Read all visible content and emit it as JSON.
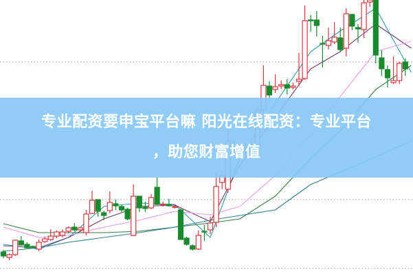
{
  "banner": {
    "line1": "专业配资要申宝平台嘛 阳光在线配资：专业平台",
    "line2": "，助您财富增值"
  },
  "chart_data": {
    "type": "candlestick",
    "ylim": [
      0,
      40
    ],
    "grid": "dotted horizontal",
    "gridlines": [
      1,
      11,
      31
    ],
    "colors": {
      "up": "#d9363e",
      "down": "#1a8a2e",
      "grid": "#999999"
    },
    "candles_ohlc_order": "open,close,high,low",
    "candles": [
      [
        3.4,
        2.8,
        3.7,
        2.5
      ],
      [
        2.6,
        3.0,
        3.2,
        2.2
      ],
      [
        3.0,
        5.1,
        5.2,
        2.8
      ],
      [
        5.0,
        4.4,
        5.7,
        4.3
      ],
      [
        4.5,
        4.0,
        4.8,
        3.9
      ],
      [
        4.2,
        4.1,
        4.3,
        4.0
      ],
      [
        3.8,
        4.8,
        5.2,
        3.5
      ],
      [
        4.9,
        5.3,
        5.6,
        4.7
      ],
      [
        5.2,
        5.7,
        6.7,
        5.0
      ],
      [
        5.7,
        6.3,
        6.5,
        5.4
      ],
      [
        5.8,
        6.3,
        6.7,
        5.5
      ],
      [
        6.4,
        6.9,
        7.1,
        6.1
      ],
      [
        7.0,
        6.6,
        7.6,
        6.4
      ],
      [
        6.6,
        6.9,
        7.0,
        6.3
      ],
      [
        6.2,
        8.9,
        9.5,
        5.8
      ],
      [
        9.0,
        10.9,
        12.3,
        8.9
      ],
      [
        11.0,
        9.3,
        11.0,
        8.5
      ],
      [
        9.1,
        8.7,
        9.4,
        8.0
      ],
      [
        9.4,
        10.6,
        12.2,
        9.0
      ],
      [
        10.4,
        10.1,
        11.0,
        9.5
      ],
      [
        10.0,
        9.5,
        10.2,
        9.2
      ],
      [
        9.6,
        8.2,
        9.8,
        8.0
      ],
      [
        5.8,
        11.5,
        13.2,
        5.7
      ],
      [
        11.5,
        9.8,
        11.5,
        9.2
      ],
      [
        9.9,
        9.7,
        10.7,
        9.2
      ],
      [
        9.8,
        11.3,
        11.8,
        9.6
      ],
      [
        12.8,
        10.3,
        14.2,
        10.2
      ],
      [
        10.2,
        10.3,
        10.7,
        10.0
      ],
      [
        10.3,
        10.1,
        11.1,
        10.0
      ],
      [
        10.0,
        10.0,
        10.2,
        9.7
      ],
      [
        9.5,
        5.2,
        9.7,
        5.2
      ],
      [
        5.4,
        4.5,
        5.6,
        4.3
      ],
      [
        4.3,
        3.8,
        4.5,
        3.6
      ],
      [
        3.8,
        5.8,
        6.5,
        3.7
      ],
      [
        6.4,
        6.3,
        7.3,
        5.0
      ],
      [
        6.6,
        7.6,
        8.5,
        6.0
      ],
      [
        7.7,
        12.9,
        15.0,
        7.0
      ],
      [
        13.5,
        14.5,
        14.8,
        12.5
      ],
      [
        12.5,
        19.5,
        21.0,
        12.0
      ],
      [
        18.7,
        18.2,
        19.5,
        17.5
      ],
      [
        18.2,
        18.0,
        19.0,
        17.5
      ],
      [
        18.3,
        18.1,
        19.2,
        17.6
      ],
      [
        18.5,
        18.2,
        19.3,
        17.8
      ],
      [
        18.5,
        24.0,
        24.5,
        18.2
      ],
      [
        24.0,
        27.6,
        30.5,
        23.5
      ],
      [
        27.5,
        26.2,
        28.2,
        25.2
      ],
      [
        27.0,
        27.4,
        29.2,
        26.5
      ],
      [
        27.5,
        27.7,
        28.3,
        27.1
      ],
      [
        27.7,
        27.2,
        28.5,
        26.3
      ],
      [
        27.3,
        27.5,
        28.0,
        27.0
      ],
      [
        28.2,
        28.5,
        32.3,
        27.5
      ],
      [
        28.6,
        37.0,
        39.2,
        28.4
      ],
      [
        37.1,
        37.0,
        37.8,
        35.4
      ],
      [
        37.1,
        36.3,
        38.4,
        34.7
      ],
      [
        33.7,
        33.6,
        34.8,
        30.2
      ],
      [
        33.4,
        34.1,
        36.0,
        32.8
      ],
      [
        33.9,
        34.6,
        36.8,
        33.6
      ],
      [
        34.5,
        32.8,
        36.0,
        32.4
      ],
      [
        33.0,
        38.0,
        38.8,
        31.8
      ],
      [
        37.9,
        36.2,
        38.0,
        35.6
      ],
      [
        36.0,
        35.8,
        36.5,
        33.8
      ],
      [
        35.7,
        39.6,
        40.0,
        34.5
      ],
      [
        39.7,
        40.0,
        40.0,
        39.0
      ],
      [
        40.0,
        32.0,
        40.0,
        30.8
      ],
      [
        31.6,
        30.0,
        32.7,
        29.0
      ],
      [
        29.9,
        28.7,
        30.5,
        27.3
      ],
      [
        28.0,
        28.3,
        31.8,
        27.8
      ],
      [
        28.3,
        30.8,
        31.0,
        27.8
      ],
      [
        31.0,
        30.0,
        31.5,
        29.0
      ]
    ],
    "ma_sample_indices": [
      0,
      6,
      11,
      17,
      23,
      29,
      35,
      40,
      46,
      52,
      57,
      63,
      69
    ],
    "moving_averages": [
      {
        "color": "#2a9db0",
        "values": [
          4.5,
          3.8,
          5.5,
          10,
          10.5,
          10.3,
          5.5,
          17,
          25,
          32.5,
          35.5,
          38.8,
          29.5
        ]
      },
      {
        "color": "#6b3a6b",
        "values": [
          4.3,
          4.0,
          5.5,
          8.2,
          10,
          10.2,
          7.8,
          16,
          23,
          30,
          32.5,
          36.5,
          33
        ]
      },
      {
        "color": "#e79be6",
        "values": [
          7,
          5.5,
          5.8,
          7,
          8,
          9.3,
          8.8,
          10,
          14.5,
          20.5,
          26,
          32.5,
          34
        ]
      },
      {
        "color": "#2f7a45",
        "values": [
          7.5,
          6.2,
          6.2,
          6.2,
          6.4,
          7,
          7.6,
          8.2,
          11.5,
          17,
          21,
          27,
          30.5
        ]
      },
      {
        "color": "#2f7f8f",
        "values": [
          3.5,
          4,
          4.8,
          5.5,
          6.2,
          7,
          8,
          8.7,
          9.5,
          13.2,
          15,
          17.2,
          19.5
        ]
      }
    ]
  }
}
